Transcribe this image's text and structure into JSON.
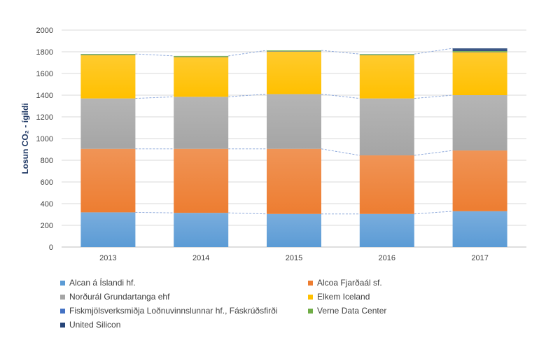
{
  "chart_data": {
    "type": "bar",
    "stacked": true,
    "title": "",
    "xlabel": "",
    "ylabel": "Losun CO₂ - ígildi",
    "ylim": [
      0,
      2000
    ],
    "yticks": [
      0,
      200,
      400,
      600,
      800,
      1000,
      1200,
      1400,
      1600,
      1800,
      2000
    ],
    "categories": [
      "2013",
      "2014",
      "2015",
      "2016",
      "2017"
    ],
    "grid": true,
    "legend_position": "bottom",
    "series": [
      {
        "name": "Alcan á Íslandi hf.",
        "color": "#5b9bd5",
        "values": [
          320,
          315,
          305,
          305,
          330
        ]
      },
      {
        "name": "Alcoa Fjarðaál sf.",
        "color": "#ed7d31",
        "values": [
          585,
          590,
          600,
          540,
          560
        ]
      },
      {
        "name": "Norðurál Grundartanga ehf",
        "color": "#a5a5a5",
        "values": [
          465,
          480,
          505,
          525,
          510
        ]
      },
      {
        "name": "Elkem Iceland",
        "color": "#ffc000",
        "values": [
          402,
          370,
          397,
          402,
          400
        ]
      },
      {
        "name": "Fiskmjölsverksmiðja Loðnuvinnslunnar hf., Fáskrúðsfirði",
        "color": "#4472c4",
        "values": [
          5,
          4,
          3,
          4,
          4
        ]
      },
      {
        "name": "Verne Data Center",
        "color": "#70ad47",
        "values": [
          3,
          3,
          3,
          3,
          3
        ]
      },
      {
        "name": "United Silicon",
        "color": "#264478",
        "values": [
          0,
          0,
          0,
          0,
          25
        ]
      }
    ]
  }
}
